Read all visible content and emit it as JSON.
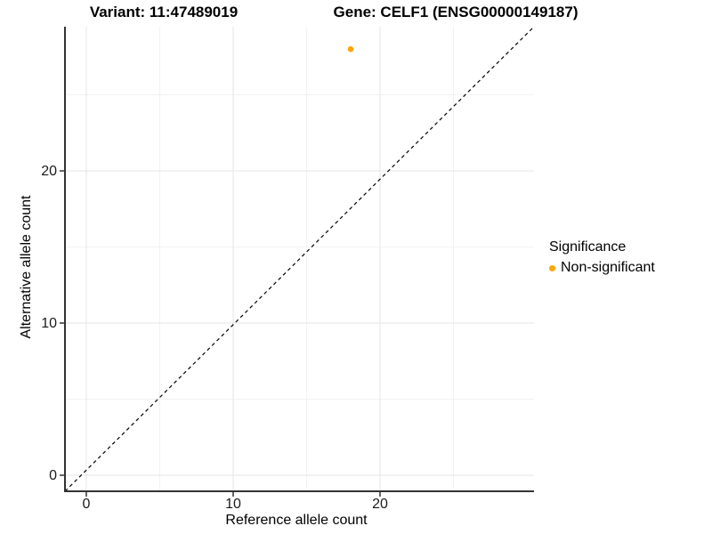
{
  "figure": {
    "title_left": "Variant: 11:47489019",
    "title_right": "Gene: CELF1 (ENSG00000149187)"
  },
  "chart_data": {
    "type": "scatter",
    "title": "Variant: 11:47489019  /  Gene: CELF1 (ENSG00000149187)",
    "xlabel": "Reference allele count",
    "ylabel": "Alternative allele count",
    "x_ticks": [
      0,
      10,
      20
    ],
    "y_ticks": [
      0,
      10,
      20
    ],
    "x_minor_gridlines": [
      5,
      15,
      25
    ],
    "y_minor_gridlines": [
      5,
      15,
      25
    ],
    "xlim": [
      -1.5,
      30.5
    ],
    "ylim": [
      -1.1,
      29.4
    ],
    "grid": "major+minor",
    "points": [
      {
        "x": 18,
        "y": 28,
        "series": "Non-significant"
      }
    ],
    "series": [
      {
        "name": "Non-significant",
        "color": "#FFA500"
      }
    ],
    "identity_line": {
      "slope": 1,
      "intercept": 0,
      "style": "dashed",
      "color": "#000000"
    },
    "legend": {
      "title": "Significance",
      "position": "right",
      "items": [
        {
          "label": "Non-significant",
          "color": "#FFA500"
        }
      ]
    }
  },
  "colors": {
    "background": "#FFFFFF",
    "axis_line": "#333333",
    "tick_mark": "#333333",
    "tick_text": "#1A1A1A",
    "grid_major": "#E6E6E6",
    "grid_minor": "#F2F2F2",
    "point": "#FFA500"
  }
}
